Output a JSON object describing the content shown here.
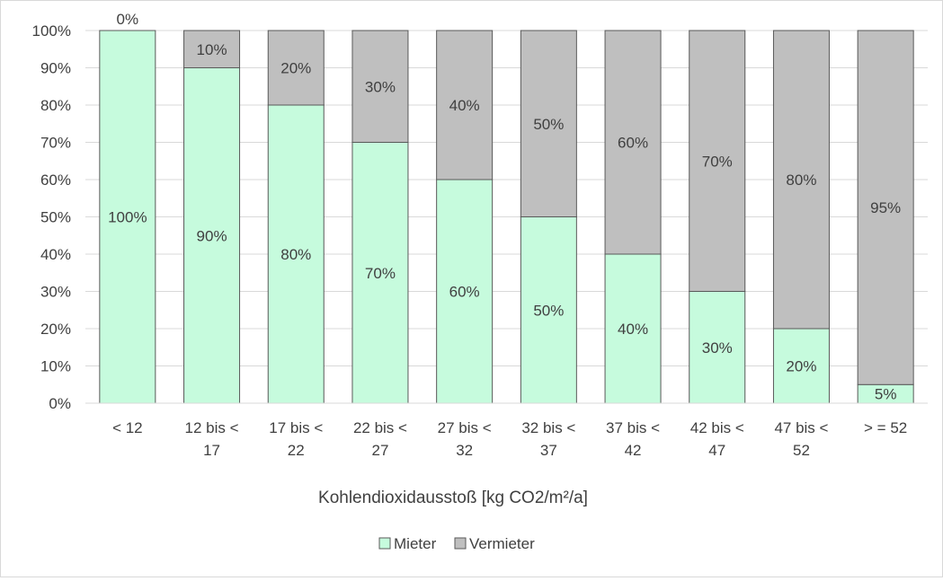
{
  "chart_data": {
    "type": "bar",
    "stacked": true,
    "title": "",
    "xlabel": "Kohlendioxidausstoß  [kg CO2/m²/a]",
    "ylabel": "",
    "ylim": [
      0,
      100
    ],
    "y_ticks": [
      "0%",
      "10%",
      "20%",
      "30%",
      "40%",
      "50%",
      "60%",
      "70%",
      "80%",
      "90%",
      "100%"
    ],
    "grid": true,
    "legend_position": "bottom",
    "categories": [
      [
        "< 12"
      ],
      [
        "12 bis <",
        "17"
      ],
      [
        "17 bis <",
        "22"
      ],
      [
        "22 bis <",
        "27"
      ],
      [
        "27 bis <",
        "32"
      ],
      [
        "32 bis <",
        "37"
      ],
      [
        "37 bis <",
        "42"
      ],
      [
        "42 bis <",
        "47"
      ],
      [
        "47 bis <",
        "52"
      ],
      [
        "> = 52"
      ]
    ],
    "series": [
      {
        "name": "Mieter",
        "color": "#c6fbdd",
        "values": [
          100,
          90,
          80,
          70,
          60,
          50,
          40,
          30,
          20,
          5
        ],
        "labels": [
          "100%",
          "90%",
          "80%",
          "70%",
          "60%",
          "50%",
          "40%",
          "30%",
          "20%",
          "5%"
        ]
      },
      {
        "name": "Vermieter",
        "color": "#bfbfbf",
        "values": [
          0,
          10,
          20,
          30,
          40,
          50,
          60,
          70,
          80,
          95
        ],
        "labels": [
          "0%",
          "10%",
          "20%",
          "30%",
          "40%",
          "50%",
          "60%",
          "70%",
          "80%",
          "95%"
        ]
      }
    ]
  }
}
